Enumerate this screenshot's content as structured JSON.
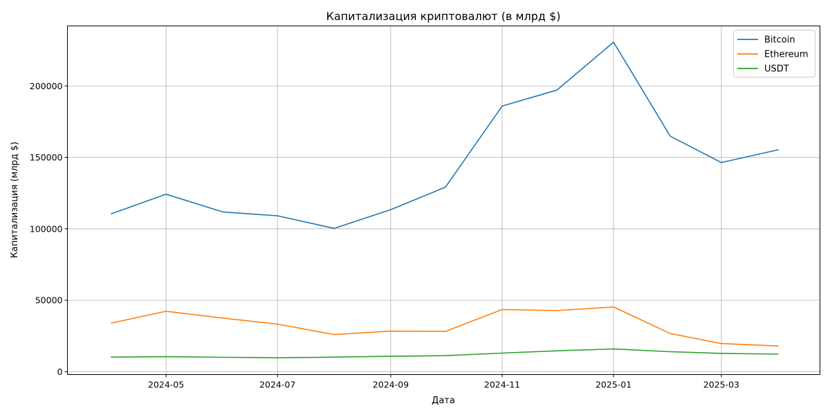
{
  "chart_data": {
    "type": "line",
    "title": "Капитализация криптовалют (в млрд $)",
    "xlabel": "Дата",
    "ylabel": "Капитализация (млрд $)",
    "x": [
      "2024-04-01",
      "2024-05-01",
      "2024-06-01",
      "2024-07-01",
      "2024-08-01",
      "2024-09-01",
      "2024-10-01",
      "2024-11-01",
      "2024-12-01",
      "2025-01-01",
      "2025-02-01",
      "2025-03-01",
      "2025-04-01"
    ],
    "xlim": [
      "2024-03-08",
      "2025-04-24"
    ],
    "xticks": [
      {
        "date": "2024-05-01",
        "label": "2024-05"
      },
      {
        "date": "2024-07-01",
        "label": "2024-07"
      },
      {
        "date": "2024-09-01",
        "label": "2024-09"
      },
      {
        "date": "2024-11-01",
        "label": "2024-11"
      },
      {
        "date": "2025-01-01",
        "label": "2025-01"
      },
      {
        "date": "2025-03-01",
        "label": "2025-03"
      }
    ],
    "ylim": [
      -2000,
      242000
    ],
    "yticks": [
      0,
      50000,
      100000,
      150000,
      200000
    ],
    "grid": true,
    "legend_position": "top-right",
    "series": [
      {
        "name": "Bitcoin",
        "color": "#1f77b4",
        "values": [
          110500,
          124200,
          111800,
          109100,
          100300,
          113400,
          129200,
          185900,
          197100,
          230600,
          164900,
          146400,
          155300
        ]
      },
      {
        "name": "Ethereum",
        "color": "#ff7f0e",
        "values": [
          34000,
          42300,
          37500,
          33300,
          26000,
          28400,
          28200,
          43500,
          42800,
          45300,
          26700,
          19700,
          18000
        ]
      },
      {
        "name": "USDT",
        "color": "#2ca02c",
        "values": [
          10200,
          10500,
          10100,
          9700,
          10200,
          10800,
          11200,
          13000,
          14600,
          15900,
          14000,
          12800,
          12300
        ]
      }
    ]
  }
}
